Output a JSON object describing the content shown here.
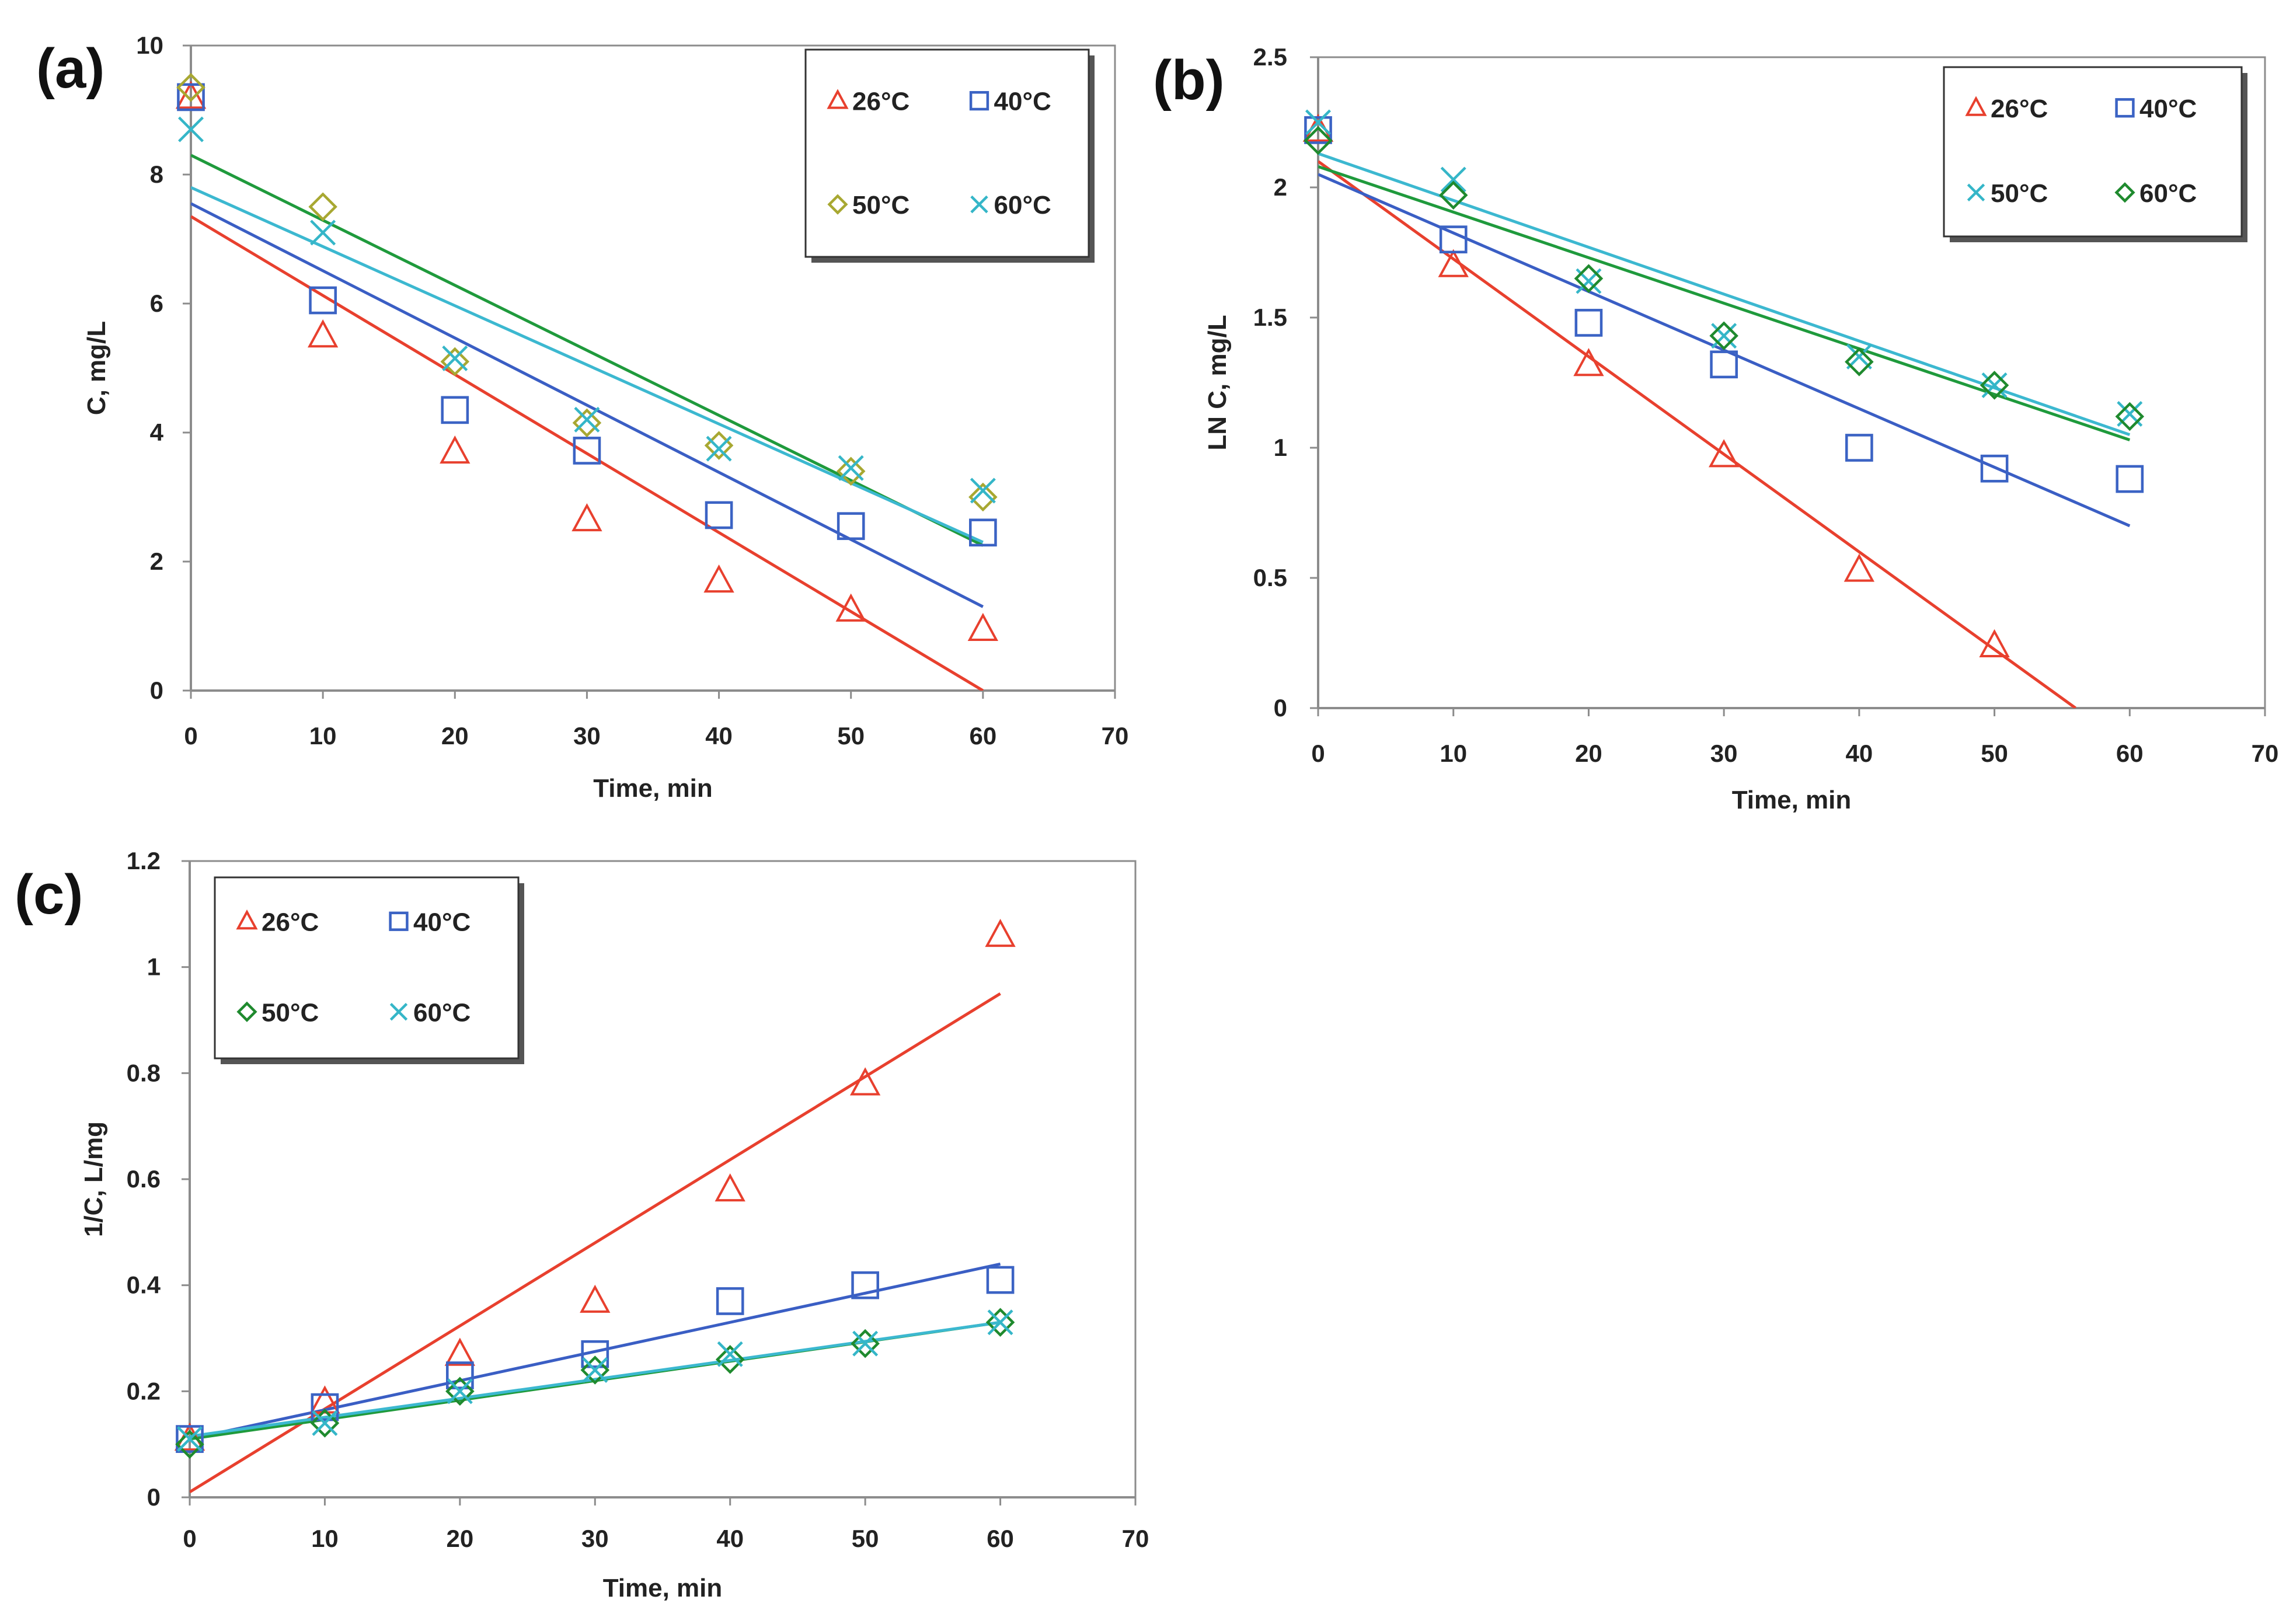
{
  "chart_data": [
    {
      "panel": "(a)",
      "type": "scatter",
      "xlabel": "Time, min",
      "ylabel": "C, mg/L",
      "xlim": [
        0,
        70
      ],
      "ylim": [
        0,
        10
      ],
      "xticks": [
        0,
        10,
        20,
        30,
        40,
        50,
        60,
        70
      ],
      "yticks": [
        0,
        2,
        4,
        6,
        8,
        10
      ],
      "grid": false,
      "legend_position": "top-right",
      "x": [
        0,
        10,
        20,
        30,
        40,
        50,
        60
      ],
      "series": [
        {
          "name": "26°C",
          "marker": "triangle",
          "color": "#e8402e",
          "line_color": "#e8402e",
          "values": [
            9.2,
            5.5,
            3.7,
            2.65,
            1.7,
            1.25,
            0.95
          ],
          "fit": [
            7.35,
            0.0
          ]
        },
        {
          "name": "40°C",
          "marker": "square",
          "color": "#3b63c4",
          "line_color": "#3a5ec4",
          "values": [
            9.2,
            6.05,
            4.35,
            3.72,
            2.72,
            2.55,
            2.45
          ],
          "fit": [
            7.55,
            1.3
          ]
        },
        {
          "name": "50°C",
          "marker": "diamond",
          "color": "#a8a832",
          "line_color": "#1f9a3c",
          "values": [
            9.35,
            7.5,
            5.1,
            4.15,
            3.8,
            3.4,
            3.0
          ],
          "fit": [
            8.3,
            2.25
          ]
        },
        {
          "name": "60°C",
          "marker": "x",
          "color": "#35b6c8",
          "line_color": "#3cb8d0",
          "values": [
            8.7,
            7.1,
            5.15,
            4.2,
            3.75,
            3.45,
            3.1
          ],
          "fit": [
            7.8,
            2.3
          ]
        }
      ]
    },
    {
      "panel": "(b)",
      "type": "scatter",
      "xlabel": "Time, min",
      "ylabel": "LN C, mg/L",
      "xlim": [
        0,
        70
      ],
      "ylim": [
        0,
        2.5
      ],
      "xticks": [
        0,
        10,
        20,
        30,
        40,
        50,
        60,
        70
      ],
      "yticks": [
        0,
        0.5,
        1,
        1.5,
        2,
        2.5
      ],
      "grid": false,
      "legend_position": "top-right",
      "x": [
        0,
        10,
        20,
        30,
        40,
        50,
        60
      ],
      "series": [
        {
          "name": "26°C",
          "marker": "triangle",
          "color": "#e8402e",
          "line_color": "#e8402e",
          "values": [
            2.22,
            1.7,
            1.32,
            0.97,
            0.53,
            0.24,
            null
          ],
          "fit": [
            2.1,
            -0.15
          ]
        },
        {
          "name": "40°C",
          "marker": "square",
          "color": "#3b63c4",
          "line_color": "#3a5ec4",
          "values": [
            2.22,
            1.8,
            1.48,
            1.32,
            1.0,
            0.92,
            0.88
          ],
          "fit": [
            2.05,
            0.7
          ]
        },
        {
          "name": "50°C",
          "marker": "x",
          "color": "#35b6c8",
          "line_color": "#3cb8d0",
          "values": [
            2.25,
            2.03,
            1.64,
            1.43,
            1.35,
            1.24,
            1.13
          ],
          "fit": [
            2.13,
            1.05
          ]
        },
        {
          "name": "60°C",
          "marker": "diamond",
          "color": "#1f8a2e",
          "line_color": "#1f9a3c",
          "values": [
            2.18,
            1.97,
            1.65,
            1.43,
            1.33,
            1.24,
            1.12
          ],
          "fit": [
            2.08,
            1.03
          ]
        }
      ]
    },
    {
      "panel": "(c)",
      "type": "scatter",
      "xlabel": "Time, min",
      "ylabel": "1/C, L/mg",
      "xlim": [
        0,
        70
      ],
      "ylim": [
        0,
        1.2
      ],
      "xticks": [
        0,
        10,
        20,
        30,
        40,
        50,
        60,
        70
      ],
      "yticks": [
        0,
        0.2,
        0.4,
        0.6,
        0.8,
        1,
        1.2
      ],
      "grid": false,
      "legend_position": "top-left",
      "x": [
        0,
        10,
        20,
        30,
        40,
        50,
        60
      ],
      "series": [
        {
          "name": "26°C",
          "marker": "triangle",
          "color": "#e8402e",
          "line_color": "#e8402e",
          "values": [
            0.11,
            0.18,
            0.27,
            0.37,
            0.58,
            0.78,
            1.06
          ],
          "fit": [
            0.01,
            0.95
          ]
        },
        {
          "name": "40°C",
          "marker": "square",
          "color": "#3b63c4",
          "line_color": "#3a5ec4",
          "values": [
            0.11,
            0.17,
            0.23,
            0.27,
            0.37,
            0.4,
            0.41
          ],
          "fit": [
            0.11,
            0.44
          ]
        },
        {
          "name": "50°C",
          "marker": "diamond",
          "color": "#1f8a2e",
          "line_color": "#1f9a3c",
          "values": [
            0.1,
            0.14,
            0.2,
            0.24,
            0.26,
            0.29,
            0.33
          ],
          "fit": [
            0.11,
            0.33
          ]
        },
        {
          "name": "60°C",
          "marker": "x",
          "color": "#35b6c8",
          "line_color": "#3cb8d0",
          "values": [
            0.11,
            0.14,
            0.2,
            0.24,
            0.27,
            0.29,
            0.33
          ],
          "fit": [
            0.115,
            0.33
          ]
        }
      ]
    }
  ]
}
